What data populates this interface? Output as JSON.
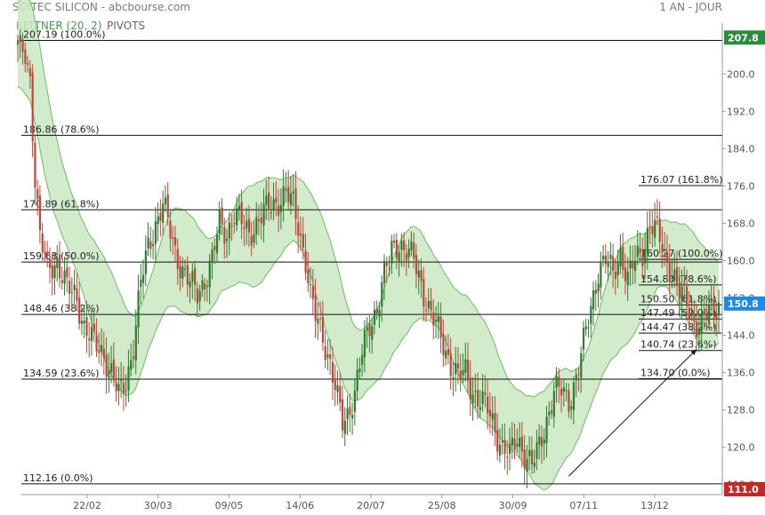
{
  "header": {
    "title": "SOITEC SILICON - abcbourse.com",
    "period": "1 AN - JOUR",
    "indicator": "KELTNER (20, 2)",
    "pivots": "PIVOTS"
  },
  "colors": {
    "up": "#2e7d32",
    "down": "#b84a3a",
    "band_fill": "#c9e7c2",
    "band_line": "#6fb96a",
    "last_price": "#1e88e5",
    "high_tag": "#2e8b3e",
    "low_tag": "#c62828"
  },
  "chart_data": {
    "type": "candlestick",
    "ylim": [
      111,
      209
    ],
    "ytick_labels": [
      "200.0",
      "192.0",
      "184.0",
      "176.0",
      "168.0",
      "160.0",
      "152.0",
      "144.0",
      "136.0",
      "128.0",
      "120.0",
      "112.0"
    ],
    "ytick_values": [
      200,
      192,
      184,
      176,
      168,
      160,
      152,
      144,
      136,
      128,
      120,
      112
    ],
    "xtick_labels": [
      "22/02",
      "30/03",
      "09/05",
      "14/06",
      "20/07",
      "25/08",
      "30/09",
      "07/11",
      "13/12"
    ],
    "price_tags": {
      "high": {
        "value": 207.8,
        "label": "207.8"
      },
      "last": {
        "value": 150.8,
        "label": "150.8"
      },
      "low": {
        "value": 111.0,
        "label": "111.0"
      }
    },
    "fibonacci_long": [
      {
        "value": 207.19,
        "label": "207.19 (100.0%)"
      },
      {
        "value": 186.86,
        "label": "186.86 (78.6%)"
      },
      {
        "value": 170.89,
        "label": "170.89 (61.8%)"
      },
      {
        "value": 159.68,
        "label": "159.68 (50.0%)"
      },
      {
        "value": 148.46,
        "label": "148.46 (38.2%)"
      },
      {
        "value": 134.59,
        "label": "134.59 (23.6%)"
      },
      {
        "value": 112.16,
        "label": "112.16 (0.0%)"
      }
    ],
    "fibonacci_short": [
      {
        "value": 176.07,
        "label": "176.07 (161.8%)"
      },
      {
        "value": 160.27,
        "label": "160.27 (100.0%)"
      },
      {
        "value": 154.8,
        "label": "154.80 (78.6%)"
      },
      {
        "value": 150.5,
        "label": "150.50 (61.8%)"
      },
      {
        "value": 147.49,
        "label": "147.49 (50.0%)"
      },
      {
        "value": 144.47,
        "label": "144.47 (38.2%)"
      },
      {
        "value": 140.74,
        "label": "140.74 (23.6%)"
      },
      {
        "value": 134.7,
        "label": "134.70 (0.0%)"
      }
    ],
    "trend_arrow": {
      "from": {
        "session": 224,
        "value": 113.8
      },
      "to": {
        "session": 276,
        "value": 141.0
      }
    },
    "sessions": 286,
    "close_anchors": [
      [
        0,
        205
      ],
      [
        3,
        204
      ],
      [
        5,
        199
      ],
      [
        7,
        178
      ],
      [
        9,
        165
      ],
      [
        12,
        158
      ],
      [
        16,
        160
      ],
      [
        20,
        154
      ],
      [
        24,
        152
      ],
      [
        27,
        146
      ],
      [
        31,
        142
      ],
      [
        35,
        140
      ],
      [
        38,
        136
      ],
      [
        41,
        131
      ],
      [
        44,
        134
      ],
      [
        47,
        142
      ],
      [
        50,
        155
      ],
      [
        53,
        163
      ],
      [
        56,
        168
      ],
      [
        59,
        172
      ],
      [
        61,
        168
      ],
      [
        64,
        162
      ],
      [
        67,
        158
      ],
      [
        70,
        155
      ],
      [
        73,
        153
      ],
      [
        76,
        156
      ],
      [
        79,
        160
      ],
      [
        82,
        168
      ],
      [
        85,
        166
      ],
      [
        88,
        170
      ],
      [
        91,
        168
      ],
      [
        94,
        166
      ],
      [
        97,
        168
      ],
      [
        100,
        170
      ],
      [
        103,
        172
      ],
      [
        106,
        173
      ],
      [
        109,
        174
      ],
      [
        112,
        172
      ],
      [
        114,
        168
      ],
      [
        117,
        160
      ],
      [
        119,
        152
      ],
      [
        121,
        148
      ],
      [
        124,
        144
      ],
      [
        127,
        138
      ],
      [
        130,
        130
      ],
      [
        132,
        125
      ],
      [
        134,
        127
      ],
      [
        137,
        132
      ],
      [
        140,
        140
      ],
      [
        143,
        146
      ],
      [
        146,
        150
      ],
      [
        149,
        157
      ],
      [
        152,
        162
      ],
      [
        155,
        164
      ],
      [
        158,
        162
      ],
      [
        161,
        160
      ],
      [
        164,
        155
      ],
      [
        167,
        150
      ],
      [
        170,
        146
      ],
      [
        173,
        142
      ],
      [
        176,
        138
      ],
      [
        179,
        135
      ],
      [
        182,
        136
      ],
      [
        185,
        132
      ],
      [
        188,
        130
      ],
      [
        191,
        128
      ],
      [
        194,
        124
      ],
      [
        197,
        120
      ],
      [
        200,
        118
      ],
      [
        203,
        122
      ],
      [
        206,
        119
      ],
      [
        209,
        116
      ],
      [
        212,
        120
      ],
      [
        215,
        126
      ],
      [
        218,
        132
      ],
      [
        221,
        132
      ],
      [
        224,
        130
      ],
      [
        227,
        135
      ],
      [
        230,
        142
      ],
      [
        233,
        150
      ],
      [
        236,
        158
      ],
      [
        239,
        160
      ],
      [
        242,
        157
      ],
      [
        245,
        162
      ],
      [
        248,
        156
      ],
      [
        251,
        160
      ],
      [
        254,
        162
      ],
      [
        257,
        168
      ],
      [
        260,
        166
      ],
      [
        263,
        161
      ],
      [
        266,
        158
      ],
      [
        269,
        153
      ],
      [
        272,
        151
      ],
      [
        275,
        147
      ],
      [
        278,
        146
      ],
      [
        281,
        149
      ],
      [
        285,
        151
      ]
    ]
  }
}
